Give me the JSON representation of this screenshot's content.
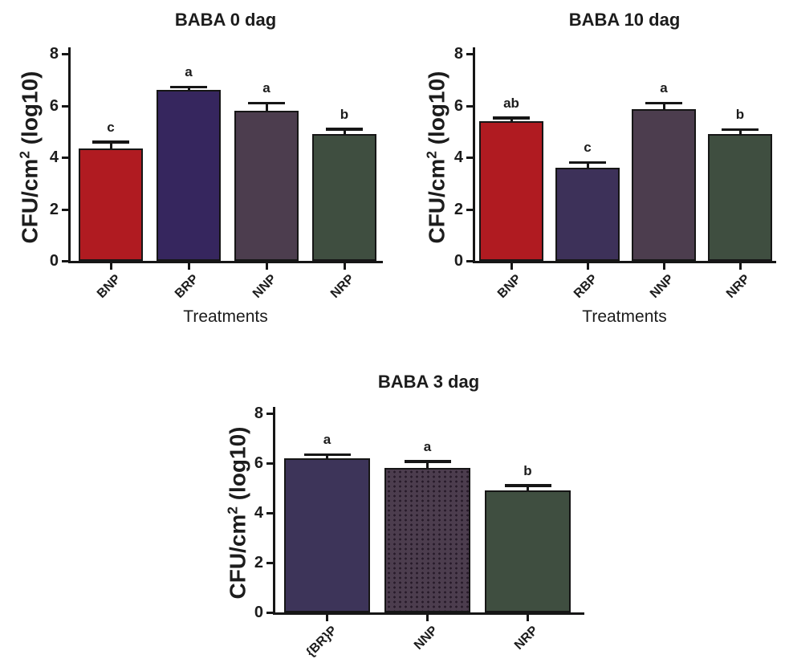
{
  "figure": {
    "background": "#ffffff",
    "text_color": "#1c1c1c",
    "axis_color": "#161616"
  },
  "axis": {
    "ylabel": "CFU/cm2 (log10)",
    "ylabel_base": "CFU/cm",
    "ylabel_sup": "2",
    "ylabel_rest": " (log10)"
  },
  "chart_data": [
    {
      "type": "bar",
      "title": "BABA 0 dag",
      "xlabel": "Treatments",
      "ylabel": "CFU/cm2 (log10)",
      "ylim": [
        0,
        8
      ],
      "yticks": [
        0,
        2,
        4,
        6,
        8
      ],
      "grid": false,
      "legend": false,
      "categories": [
        "BNP",
        "BRP",
        "NNP",
        "NRP"
      ],
      "values": [
        4.35,
        6.6,
        5.8,
        4.9
      ],
      "errors": [
        0.25,
        0.12,
        0.3,
        0.2
      ],
      "sig_letters": [
        "c",
        "a",
        "a",
        "b"
      ],
      "bar_colors": [
        "#b01b21",
        "#36265e",
        "#4c3d4e",
        "#3f4e40"
      ],
      "bar_patterns": [
        "solid",
        "solid",
        "solid",
        "solid"
      ]
    },
    {
      "type": "bar",
      "title": "BABA 10 dag",
      "xlabel": "Treatments",
      "ylabel": "CFU/cm2 (log10)",
      "ylim": [
        0,
        8
      ],
      "yticks": [
        0,
        2,
        4,
        6,
        8
      ],
      "grid": false,
      "legend": false,
      "categories": [
        "BNP",
        "RBP",
        "NNP",
        "NRP"
      ],
      "values": [
        5.4,
        3.6,
        5.85,
        4.9
      ],
      "errors": [
        0.12,
        0.2,
        0.25,
        0.18
      ],
      "sig_letters": [
        "ab",
        "c",
        "a",
        "b"
      ],
      "bar_colors": [
        "#b01b21",
        "#3d3159",
        "#4c3d4e",
        "#3f4e40"
      ],
      "bar_patterns": [
        "solid",
        "solid",
        "solid",
        "solid"
      ]
    },
    {
      "type": "bar",
      "title": "BABA 3 dag",
      "xlabel": "",
      "ylabel": "CFU/cm2 (log10)",
      "ylim": [
        0,
        8
      ],
      "yticks": [
        0,
        2,
        4,
        6,
        8
      ],
      "grid": false,
      "legend": false,
      "categories": [
        "{BR}P",
        "NNP",
        "NRP"
      ],
      "values": [
        6.2,
        5.8,
        4.9
      ],
      "errors": [
        0.15,
        0.28,
        0.2
      ],
      "sig_letters": [
        "a",
        "a",
        "b"
      ],
      "bar_colors": [
        "#3d3459",
        "#4c3d4e",
        "#3f4e40"
      ],
      "bar_patterns": [
        "solid",
        "dots",
        "solid"
      ]
    }
  ]
}
